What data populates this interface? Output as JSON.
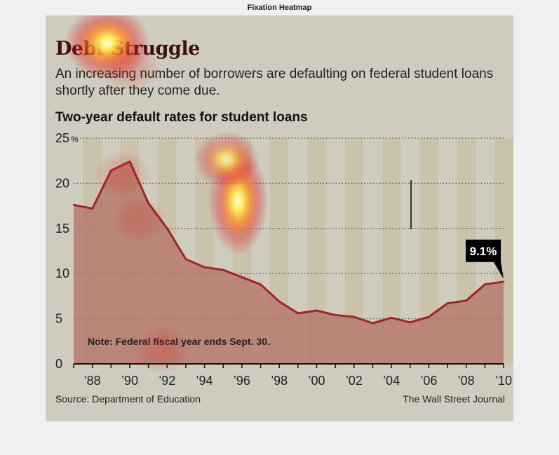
{
  "figure": {
    "title": "Fixation Heatmap"
  },
  "graphic": {
    "headline": "Debt Struggle",
    "subhead": "An increasing number of borrowers are defaulting on federal student loans shortly after they come due.",
    "source": "Source: Department of Education",
    "credit": "The Wall Street Journal",
    "colors": {
      "background": "#cfccbf",
      "stripe": "#c8b99a",
      "area": "#b5776a",
      "line": "#9c2626",
      "callout_bg": "#000000",
      "callout_text": "#ffffff"
    }
  },
  "chart_data": {
    "type": "area",
    "title": "Two-year default rates for student loans",
    "ylim": [
      0,
      25
    ],
    "xlim": [
      1987,
      2010
    ],
    "y_ticks": [
      {
        "value": 0,
        "label": "0"
      },
      {
        "value": 5,
        "label": "5"
      },
      {
        "value": 10,
        "label": "10"
      },
      {
        "value": 15,
        "label": "15"
      },
      {
        "value": 20,
        "label": "20"
      },
      {
        "value": 25,
        "label": "25"
      }
    ],
    "y_unit": "%",
    "x_ticks": [
      {
        "value": 1988,
        "label": "’88"
      },
      {
        "value": 1990,
        "label": "’90"
      },
      {
        "value": 1992,
        "label": "’92"
      },
      {
        "value": 1994,
        "label": "’94"
      },
      {
        "value": 1996,
        "label": "’96"
      },
      {
        "value": 1998,
        "label": "’98"
      },
      {
        "value": 2000,
        "label": "’00"
      },
      {
        "value": 2002,
        "label": "’02"
      },
      {
        "value": 2004,
        "label": "’04"
      },
      {
        "value": 2006,
        "label": "’06"
      },
      {
        "value": 2008,
        "label": "’08"
      },
      {
        "value": 2010,
        "label": "’10"
      }
    ],
    "grid": true,
    "x": [
      1987,
      1988,
      1989,
      1990,
      1991,
      1992,
      1993,
      1994,
      1995,
      1996,
      1997,
      1998,
      1999,
      2000,
      2001,
      2002,
      2003,
      2004,
      2005,
      2006,
      2007,
      2008,
      2009,
      2010
    ],
    "series": [
      {
        "name": "",
        "values": [
          17.6,
          17.2,
          21.4,
          22.4,
          17.8,
          15.0,
          11.6,
          10.7,
          10.4,
          9.6,
          8.8,
          6.9,
          5.6,
          5.9,
          5.4,
          5.2,
          4.5,
          5.1,
          4.6,
          5.2,
          6.7,
          7.0,
          8.8,
          9.1
        ]
      }
    ],
    "annotations": {
      "callout": {
        "label": "9.1%",
        "x": 2010,
        "y": 9.1
      },
      "note": "Note: Federal fiscal year ends Sept. 30."
    }
  },
  "heatmap_overlay": {
    "fixations": [
      {
        "x_data": 1988.8,
        "y_data": 35.5,
        "intensity": 1.0
      },
      {
        "x_data": 1995.8,
        "y_data": 18.0,
        "intensity": 0.95
      },
      {
        "x_data": 1995.2,
        "y_data": 22.6,
        "intensity": 0.55
      },
      {
        "x_data": 1990.0,
        "y_data": 33.0,
        "intensity": 0.45
      },
      {
        "x_data": 1989.6,
        "y_data": 21.0,
        "intensity": 0.35
      },
      {
        "x_data": 1990.5,
        "y_data": 16.0,
        "intensity": 0.3
      },
      {
        "x_data": 1991.7,
        "y_data": 1.5,
        "intensity": 0.35
      }
    ]
  }
}
